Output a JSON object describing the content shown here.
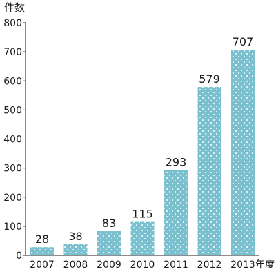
{
  "chart_data": {
    "type": "bar",
    "ylabel": "件数",
    "xunit": "年度",
    "categories": [
      "2007",
      "2008",
      "2009",
      "2010",
      "2011",
      "2012",
      "2013"
    ],
    "values": [
      28,
      38,
      83,
      115,
      293,
      579,
      707
    ],
    "ylim": [
      0,
      800
    ],
    "yticks": [
      0,
      100,
      200,
      300,
      400,
      500,
      600,
      700,
      800
    ],
    "grid": false,
    "bar_color": "#7bc0ce",
    "dot_color": "#ffffff"
  }
}
